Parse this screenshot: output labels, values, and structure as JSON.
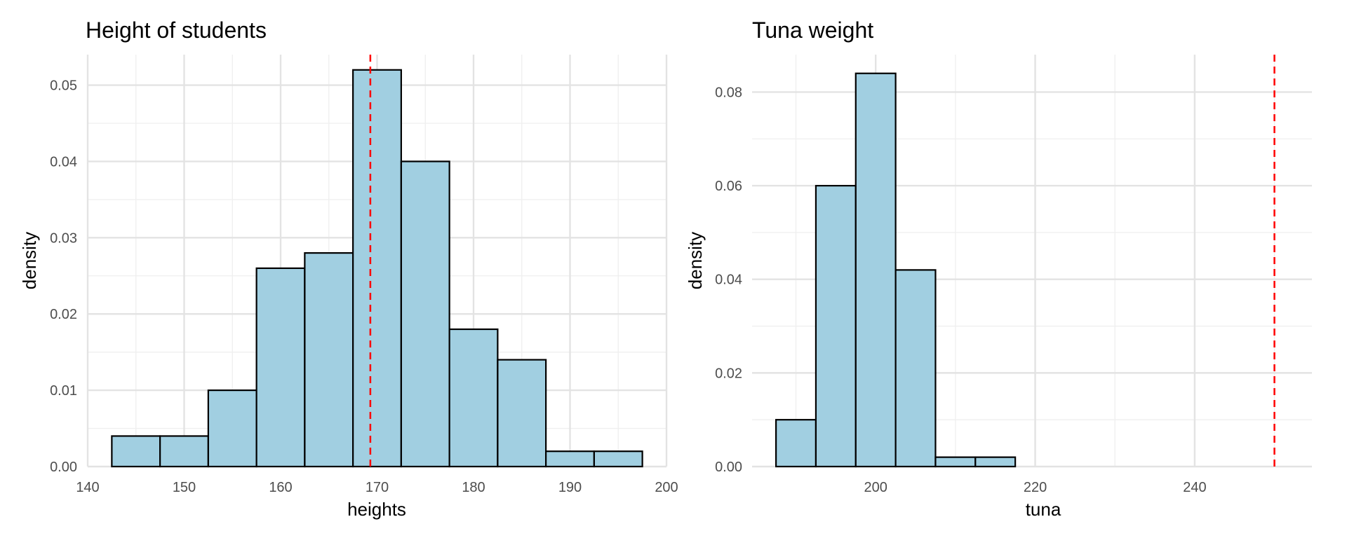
{
  "chart_data": [
    {
      "type": "bar",
      "title": "Height of students",
      "xlabel": "heights",
      "ylabel": "density",
      "xlim": [
        140,
        200
      ],
      "ylim": [
        0,
        0.054
      ],
      "x_ticks": [
        140,
        150,
        160,
        170,
        180,
        190,
        200
      ],
      "y_ticks": [
        0,
        0.01,
        0.02,
        0.03,
        0.04,
        0.05
      ],
      "x_tick_labels": [
        "140",
        "150",
        "160",
        "170",
        "180",
        "190",
        "200"
      ],
      "y_tick_labels": [
        "0.00",
        "0.01",
        "0.02",
        "0.03",
        "0.04",
        "0.05"
      ],
      "bin_width": 5,
      "bins": [
        {
          "start": 142.5,
          "end": 147.5,
          "density": 0.004
        },
        {
          "start": 147.5,
          "end": 152.5,
          "density": 0.004
        },
        {
          "start": 152.5,
          "end": 157.5,
          "density": 0.01
        },
        {
          "start": 157.5,
          "end": 162.5,
          "density": 0.026
        },
        {
          "start": 162.5,
          "end": 167.5,
          "density": 0.028
        },
        {
          "start": 167.5,
          "end": 172.5,
          "density": 0.052
        },
        {
          "start": 172.5,
          "end": 177.5,
          "density": 0.04
        },
        {
          "start": 177.5,
          "end": 182.5,
          "density": 0.018
        },
        {
          "start": 182.5,
          "end": 187.5,
          "density": 0.014
        },
        {
          "start": 187.5,
          "end": 192.5,
          "density": 0.002
        },
        {
          "start": 192.5,
          "end": 197.5,
          "density": 0.002
        }
      ],
      "reference_line": {
        "x": 169.3,
        "style": "dashed",
        "color": "#ff0000"
      },
      "bar_fill": "#a1cfe1",
      "bar_stroke": "#000000",
      "grid": true
    },
    {
      "type": "bar",
      "title": "Tuna weight",
      "xlabel": "tuna",
      "ylabel": "density",
      "xlim": [
        184.5,
        254.7
      ],
      "ylim": [
        0,
        0.088
      ],
      "x_ticks": [
        200,
        220,
        240
      ],
      "y_ticks": [
        0,
        0.02,
        0.04,
        0.06,
        0.08
      ],
      "x_tick_labels": [
        "200",
        "220",
        "240"
      ],
      "y_tick_labels": [
        "0.00",
        "0.02",
        "0.04",
        "0.06",
        "0.08"
      ],
      "bin_width": 5,
      "bins": [
        {
          "start": 187.5,
          "end": 192.5,
          "density": 0.01
        },
        {
          "start": 192.5,
          "end": 197.5,
          "density": 0.06
        },
        {
          "start": 197.5,
          "end": 202.5,
          "density": 0.084
        },
        {
          "start": 202.5,
          "end": 207.5,
          "density": 0.042
        },
        {
          "start": 207.5,
          "end": 212.5,
          "density": 0.002
        },
        {
          "start": 212.5,
          "end": 217.5,
          "density": 0.002
        },
        {
          "start": 217.5,
          "end": 222.5,
          "density": 0
        },
        {
          "start": 222.5,
          "end": 227.5,
          "density": 0
        },
        {
          "start": 227.5,
          "end": 232.5,
          "density": 0
        },
        {
          "start": 232.5,
          "end": 237.5,
          "density": 0
        },
        {
          "start": 237.5,
          "end": 242.5,
          "density": 0
        },
        {
          "start": 242.5,
          "end": 247.5,
          "density": 0
        },
        {
          "start": 247.5,
          "end": 252.5,
          "density": 0
        }
      ],
      "reference_line": {
        "x": 250,
        "style": "dashed",
        "color": "#ff0000"
      },
      "bar_fill": "#a1cfe1",
      "bar_stroke": "#000000",
      "grid": true
    }
  ]
}
